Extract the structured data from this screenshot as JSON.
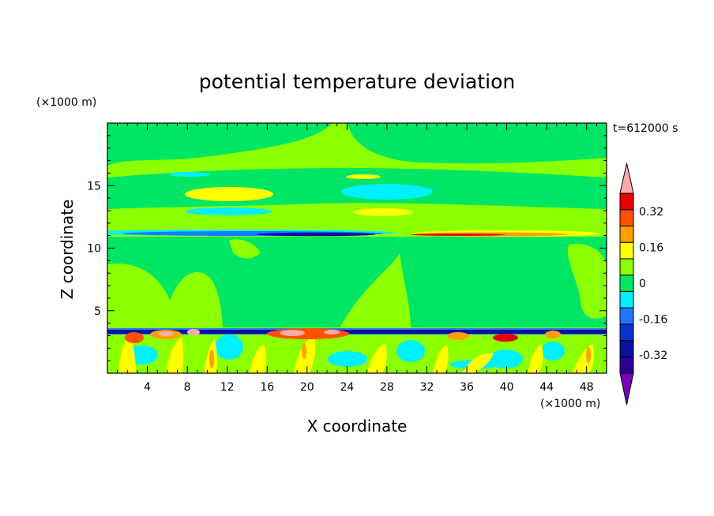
{
  "chart_data": {
    "type": "heatmap",
    "title": "potential temperature deviation",
    "time_label": "t=612000 s",
    "xlabel": "X coordinate",
    "ylabel": "Z coordinate",
    "x_unit": "(×1000 m)",
    "y_unit": "(×1000 m)",
    "xlim": [
      0,
      50
    ],
    "ylim": [
      0,
      20
    ],
    "x_ticks": [
      4,
      8,
      12,
      16,
      20,
      24,
      28,
      32,
      36,
      40,
      44,
      48
    ],
    "y_ticks": [
      5,
      10,
      15
    ],
    "colorbar": {
      "levels": [
        -0.48,
        -0.4,
        -0.32,
        -0.24,
        -0.16,
        -0.08,
        0,
        0.08,
        0.16,
        0.24,
        0.32,
        0.4,
        0.48
      ],
      "colors": [
        "#7a00b4",
        "#2a0096",
        "#0a10a0",
        "#0a34d2",
        "#1e78ff",
        "#00f0ff",
        "#00e664",
        "#8cff00",
        "#ffff00",
        "#ffa000",
        "#ff5000",
        "#e60000",
        "#ffaaaa"
      ],
      "tick_labels": [
        "-0.32",
        "-0.16",
        "0",
        "0.16",
        "0.32"
      ],
      "tick_values": [
        -0.32,
        -0.16,
        0,
        0.16,
        0.32
      ]
    },
    "field_features": [
      {
        "z": [
          0,
          3.5
        ],
        "value": "mixed turbulent boundary layer, -0.08 to 0.40"
      },
      {
        "z": [
          3.3,
          3.7
        ],
        "value": -0.32
      },
      {
        "z": [
          11.0,
          11.3
        ],
        "x": [
          0,
          28
        ],
        "value": -0.32
      },
      {
        "z": [
          11.0,
          11.3
        ],
        "x": [
          30,
          50
        ],
        "value": 0.32
      },
      {
        "z": [
          14.5,
          15.0
        ],
        "value": 0.16
      },
      {
        "z": [
          14.2,
          15.0
        ],
        "x": [
          24,
          33
        ],
        "value": -0.08
      }
    ]
  }
}
